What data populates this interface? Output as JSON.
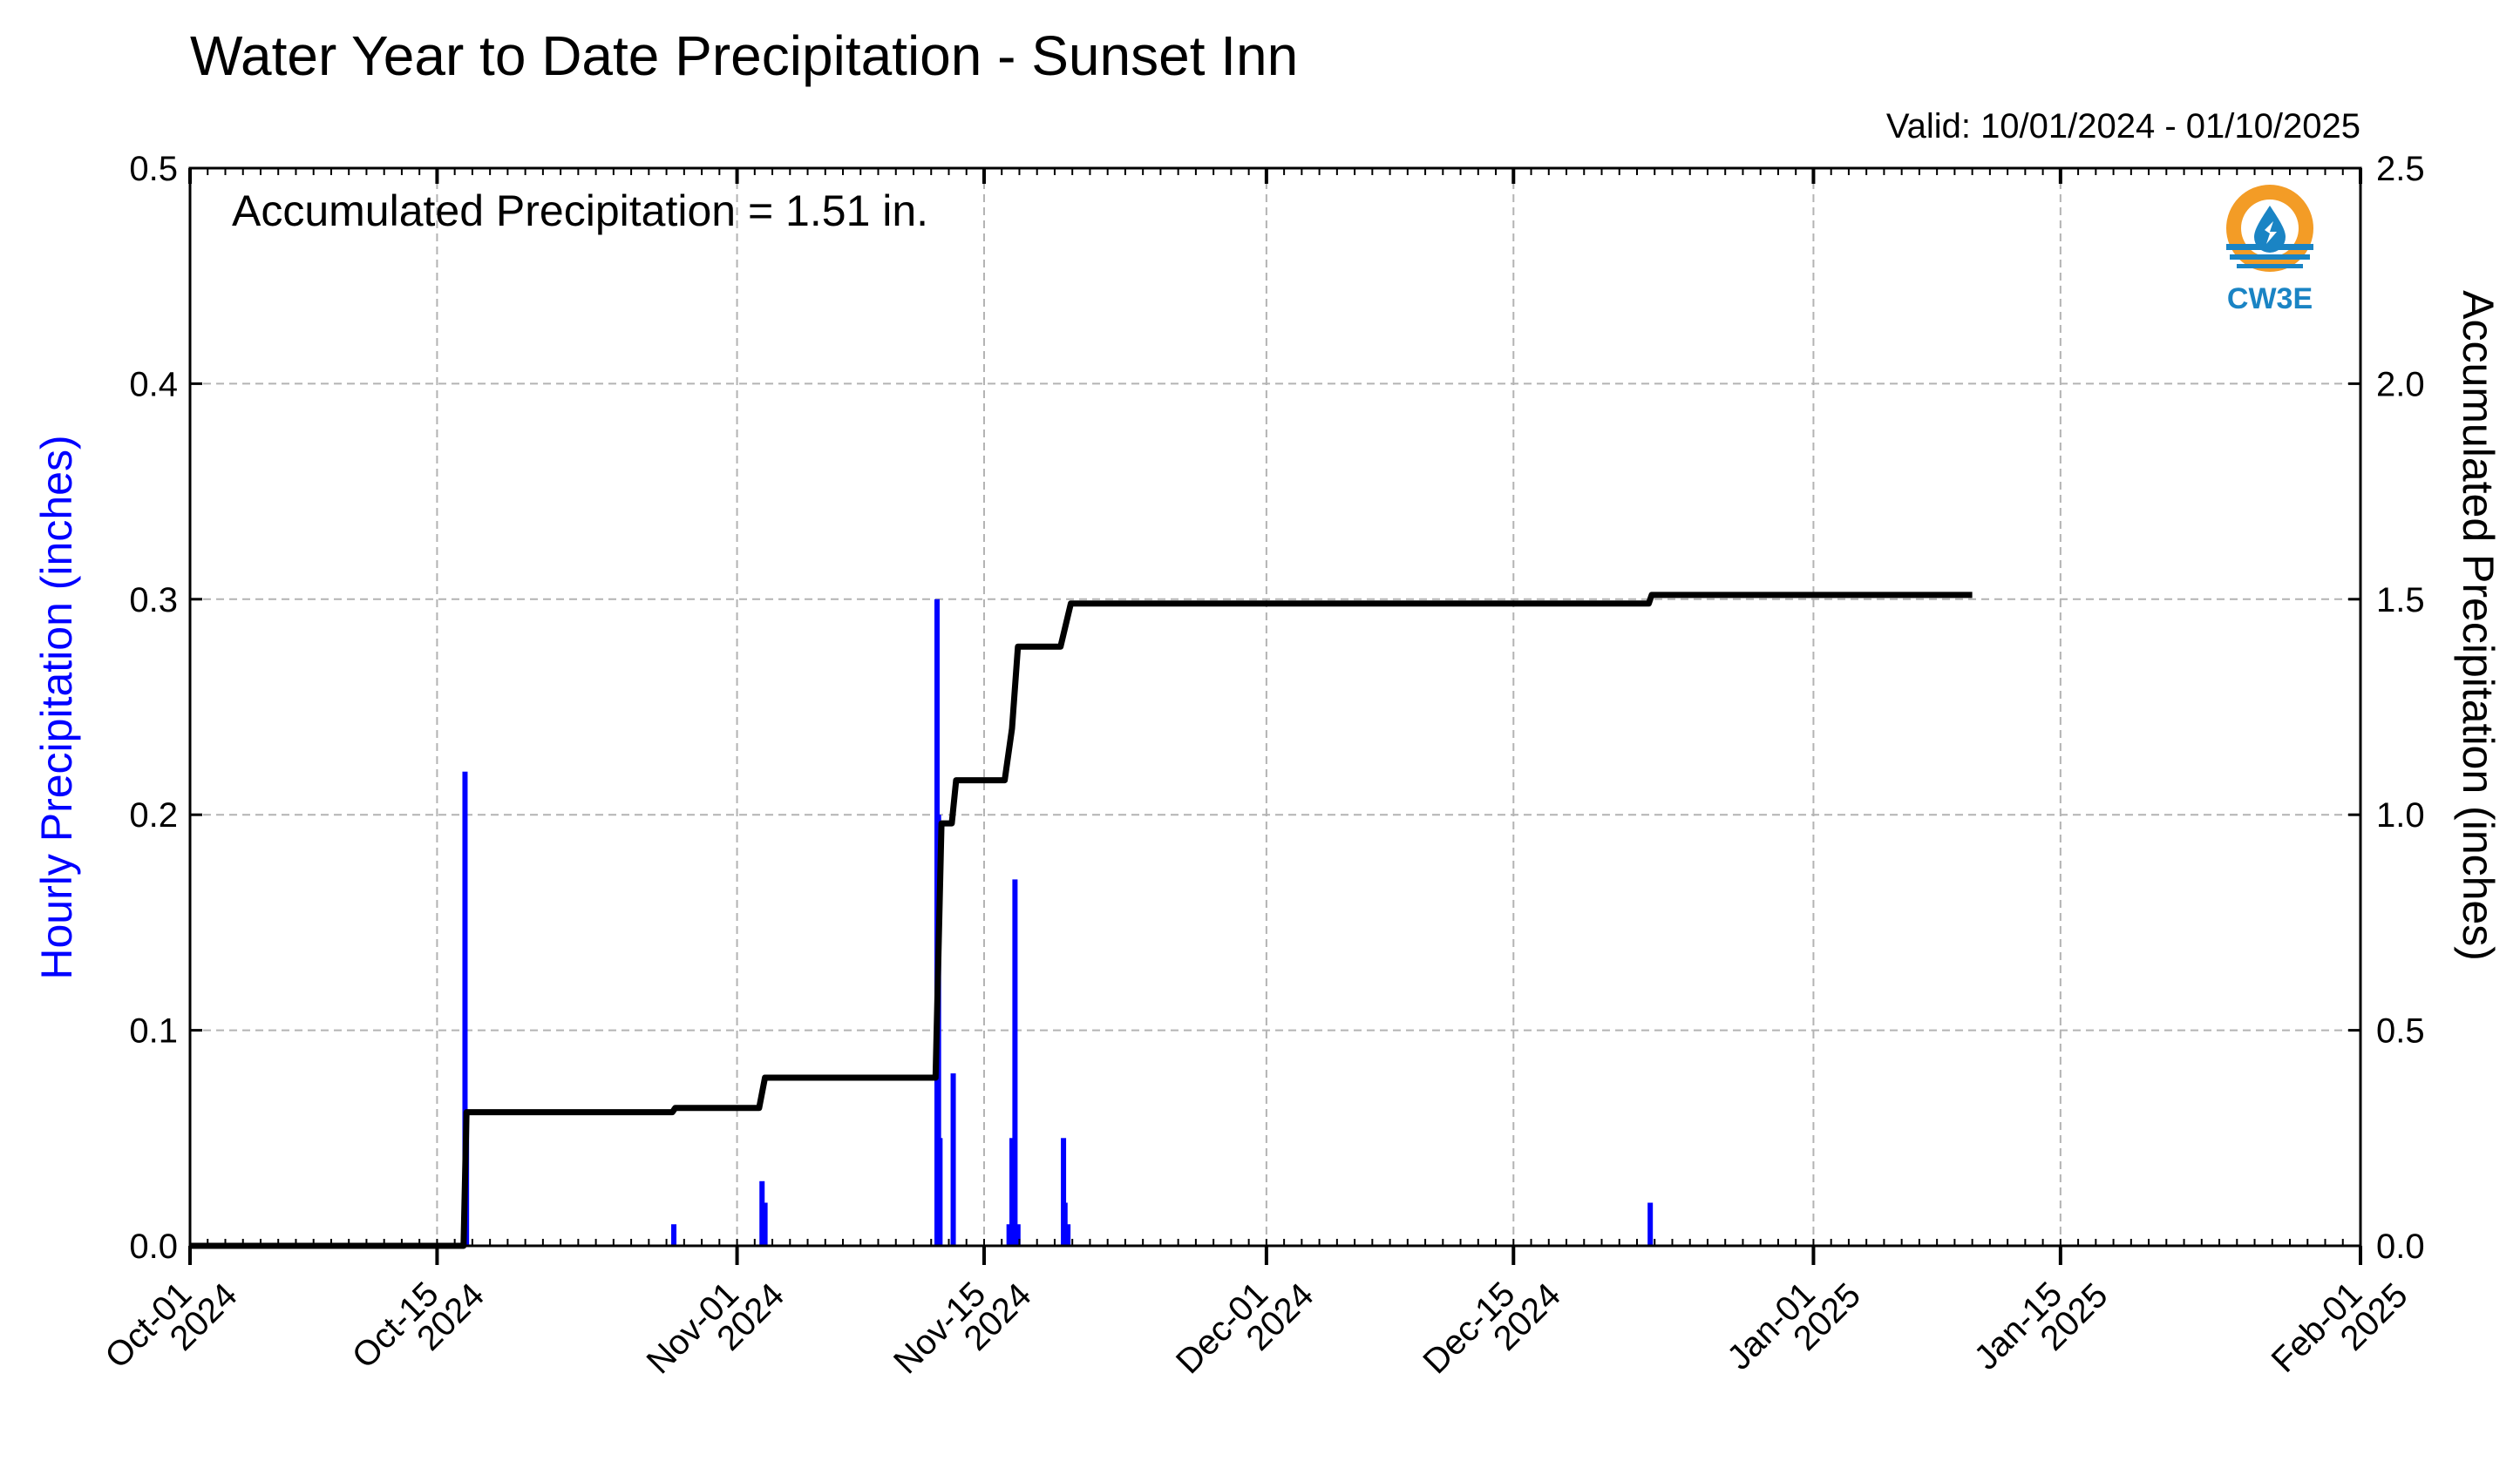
{
  "chart_data": {
    "type": "bar+line",
    "title": "Water Year to Date Precipitation - Sunset Inn",
    "subtitle": "Valid: 10/01/2024 - 01/10/2025",
    "annotation": "Accumulated Precipitation = 1.51 in.",
    "ylabel_left": "Hourly Precipitation (inches)",
    "ylabel_right": "Accumulated Precipitation (inches)",
    "ylim_left": [
      0,
      0.5
    ],
    "ylim_right": [
      0,
      2.5
    ],
    "yticks_left": [
      "0.0",
      "0.1",
      "0.2",
      "0.3",
      "0.4",
      "0.5"
    ],
    "yticks_right": [
      "0.0",
      "0.5",
      "1.0",
      "1.5",
      "2.0",
      "2.5"
    ],
    "xlim": [
      "2024-10-01",
      "2025-02-01"
    ],
    "xticks": [
      {
        "date": "2024-10-01",
        "line1": "Oct-01",
        "line2": "2024"
      },
      {
        "date": "2024-10-15",
        "line1": "Oct-15",
        "line2": "2024"
      },
      {
        "date": "2024-11-01",
        "line1": "Nov-01",
        "line2": "2024"
      },
      {
        "date": "2024-11-15",
        "line1": "Nov-15",
        "line2": "2024"
      },
      {
        "date": "2024-12-01",
        "line1": "Dec-01",
        "line2": "2024"
      },
      {
        "date": "2024-12-15",
        "line1": "Dec-15",
        "line2": "2024"
      },
      {
        "date": "2025-01-01",
        "line1": "Jan-01",
        "line2": "2025"
      },
      {
        "date": "2025-01-15",
        "line1": "Jan-15",
        "line2": "2025"
      },
      {
        "date": "2025-02-01",
        "line1": "Feb-01",
        "line2": "2025"
      }
    ],
    "grid": true,
    "colors": {
      "hourly": "#0000ff",
      "accumulated": "#000000",
      "grid": "#b3b3b3"
    },
    "series": [
      {
        "kind": "bar",
        "values": [
          {
            "x": "2024-10-16 14:00",
            "y": 0.22
          },
          {
            "x": "2024-10-16 16:00",
            "y": 0.06
          },
          {
            "x": "2024-10-28 10:00",
            "y": 0.01
          },
          {
            "x": "2024-11-02 10:00",
            "y": 0.03
          },
          {
            "x": "2024-11-02 14:00",
            "y": 0.02
          },
          {
            "x": "2024-11-12 08:00",
            "y": 0.3
          },
          {
            "x": "2024-11-12 10:00",
            "y": 0.2
          },
          {
            "x": "2024-11-12 12:00",
            "y": 0.05
          },
          {
            "x": "2024-11-13 06:00",
            "y": 0.08
          },
          {
            "x": "2024-11-16 10:00",
            "y": 0.01
          },
          {
            "x": "2024-11-16 14:00",
            "y": 0.05
          },
          {
            "x": "2024-11-16 18:00",
            "y": 0.17
          },
          {
            "x": "2024-11-16 22:00",
            "y": 0.01
          },
          {
            "x": "2024-11-19 12:00",
            "y": 0.05
          },
          {
            "x": "2024-11-19 14:00",
            "y": 0.02
          },
          {
            "x": "2024-11-19 18:00",
            "y": 0.01
          },
          {
            "x": "2024-12-22 18:00",
            "y": 0.02
          }
        ]
      },
      {
        "kind": "line",
        "values": [
          {
            "x": "2024-10-01 00:00",
            "y": 0.0
          },
          {
            "x": "2024-10-16 12:00",
            "y": 0.0
          },
          {
            "x": "2024-10-16 16:00",
            "y": 0.31
          },
          {
            "x": "2024-10-28 08:00",
            "y": 0.31
          },
          {
            "x": "2024-10-28 12:00",
            "y": 0.32
          },
          {
            "x": "2024-11-02 06:00",
            "y": 0.32
          },
          {
            "x": "2024-11-02 14:00",
            "y": 0.39
          },
          {
            "x": "2024-11-12 06:00",
            "y": 0.39
          },
          {
            "x": "2024-11-12 14:00",
            "y": 0.98
          },
          {
            "x": "2024-11-13 04:00",
            "y": 0.98
          },
          {
            "x": "2024-11-13 10:00",
            "y": 1.08
          },
          {
            "x": "2024-11-16 04:00",
            "y": 1.08
          },
          {
            "x": "2024-11-16 14:00",
            "y": 1.2
          },
          {
            "x": "2024-11-16 22:00",
            "y": 1.39
          },
          {
            "x": "2024-11-19 08:00",
            "y": 1.39
          },
          {
            "x": "2024-11-19 22:00",
            "y": 1.49
          },
          {
            "x": "2024-12-22 16:00",
            "y": 1.49
          },
          {
            "x": "2024-12-22 20:00",
            "y": 1.51
          },
          {
            "x": "2025-01-10 00:00",
            "y": 1.51
          }
        ]
      }
    ]
  },
  "logo": {
    "text": "CW3E",
    "colors": {
      "orange": "#f39c26",
      "blue": "#1a84c4"
    }
  }
}
